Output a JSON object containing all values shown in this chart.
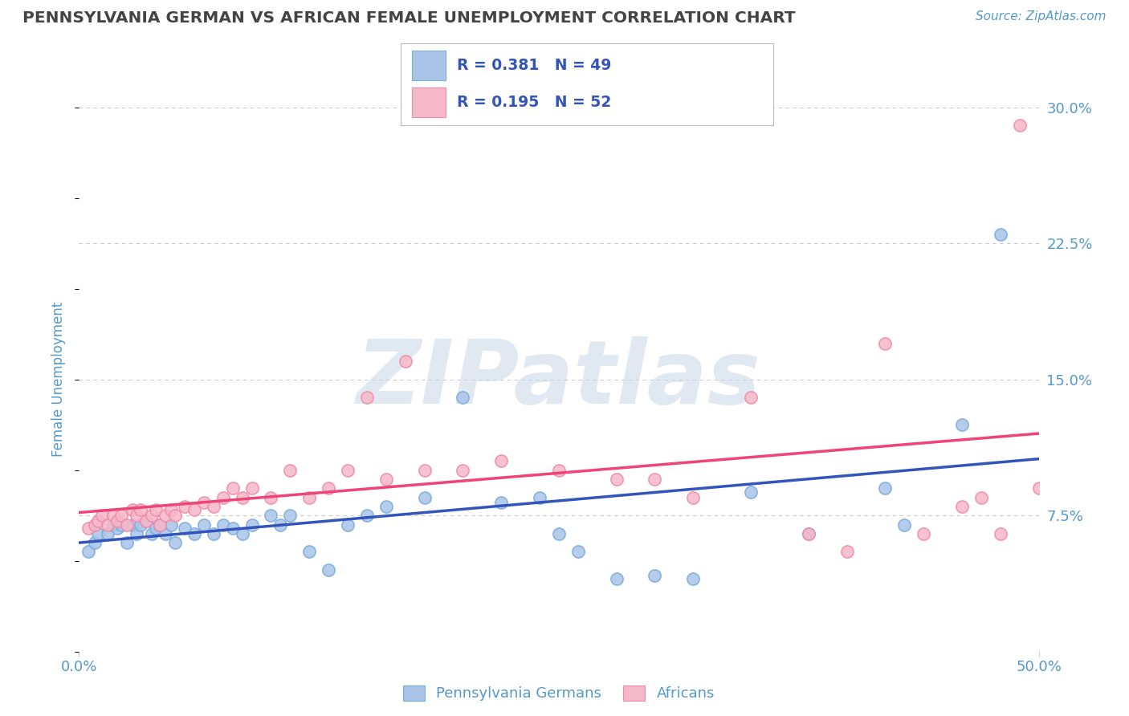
{
  "title": "PENNSYLVANIA GERMAN VS AFRICAN FEMALE UNEMPLOYMENT CORRELATION CHART",
  "source": "Source: ZipAtlas.com",
  "ylabel": "Female Unemployment",
  "xlim": [
    0.0,
    0.5
  ],
  "ylim": [
    0.0,
    0.3
  ],
  "grid_color": "#c8c8d0",
  "background_color": "#ffffff",
  "blue_color": "#aac4e8",
  "pink_color": "#f5b8c8",
  "blue_scatter_edge": "#7aacdd",
  "pink_scatter_edge": "#f08aaa",
  "blue_line_color": "#3355bb",
  "pink_line_color": "#ee4477",
  "title_color": "#444444",
  "axis_label_color": "#5599cc",
  "legend_text_color": "#3355bb",
  "watermark_color": "#c8d8e8",
  "R_blue": 0.381,
  "N_blue": 49,
  "R_pink": 0.195,
  "N_pink": 52,
  "blue_scatter_x": [
    0.005,
    0.008,
    0.01,
    0.015,
    0.018,
    0.02,
    0.022,
    0.025,
    0.028,
    0.03,
    0.032,
    0.035,
    0.038,
    0.04,
    0.042,
    0.045,
    0.048,
    0.05,
    0.055,
    0.06,
    0.065,
    0.07,
    0.075,
    0.08,
    0.085,
    0.09,
    0.1,
    0.105,
    0.11,
    0.12,
    0.13,
    0.14,
    0.15,
    0.16,
    0.18,
    0.2,
    0.22,
    0.24,
    0.25,
    0.26,
    0.28,
    0.3,
    0.32,
    0.35,
    0.38,
    0.42,
    0.43,
    0.46,
    0.48
  ],
  "blue_scatter_y": [
    0.055,
    0.06,
    0.065,
    0.065,
    0.07,
    0.068,
    0.07,
    0.06,
    0.07,
    0.065,
    0.07,
    0.072,
    0.065,
    0.068,
    0.07,
    0.065,
    0.07,
    0.06,
    0.068,
    0.065,
    0.07,
    0.065,
    0.07,
    0.068,
    0.065,
    0.07,
    0.075,
    0.07,
    0.075,
    0.055,
    0.045,
    0.07,
    0.075,
    0.08,
    0.085,
    0.14,
    0.082,
    0.085,
    0.065,
    0.055,
    0.04,
    0.042,
    0.04,
    0.088,
    0.065,
    0.09,
    0.07,
    0.125,
    0.23
  ],
  "pink_scatter_x": [
    0.005,
    0.008,
    0.01,
    0.012,
    0.015,
    0.018,
    0.02,
    0.022,
    0.025,
    0.028,
    0.03,
    0.032,
    0.035,
    0.038,
    0.04,
    0.042,
    0.045,
    0.048,
    0.05,
    0.055,
    0.06,
    0.065,
    0.07,
    0.075,
    0.08,
    0.085,
    0.09,
    0.1,
    0.11,
    0.12,
    0.13,
    0.14,
    0.15,
    0.16,
    0.17,
    0.18,
    0.2,
    0.22,
    0.25,
    0.28,
    0.3,
    0.32,
    0.35,
    0.38,
    0.4,
    0.42,
    0.44,
    0.46,
    0.47,
    0.48,
    0.49,
    0.5
  ],
  "pink_scatter_y": [
    0.068,
    0.07,
    0.072,
    0.075,
    0.07,
    0.075,
    0.072,
    0.075,
    0.07,
    0.078,
    0.075,
    0.078,
    0.072,
    0.075,
    0.078,
    0.07,
    0.075,
    0.078,
    0.075,
    0.08,
    0.078,
    0.082,
    0.08,
    0.085,
    0.09,
    0.085,
    0.09,
    0.085,
    0.1,
    0.085,
    0.09,
    0.1,
    0.14,
    0.095,
    0.16,
    0.1,
    0.1,
    0.105,
    0.1,
    0.095,
    0.095,
    0.085,
    0.14,
    0.065,
    0.055,
    0.17,
    0.065,
    0.08,
    0.085,
    0.065,
    0.29,
    0.09
  ],
  "legend_label_blue": "Pennsylvania Germans",
  "legend_label_pink": "Africans"
}
